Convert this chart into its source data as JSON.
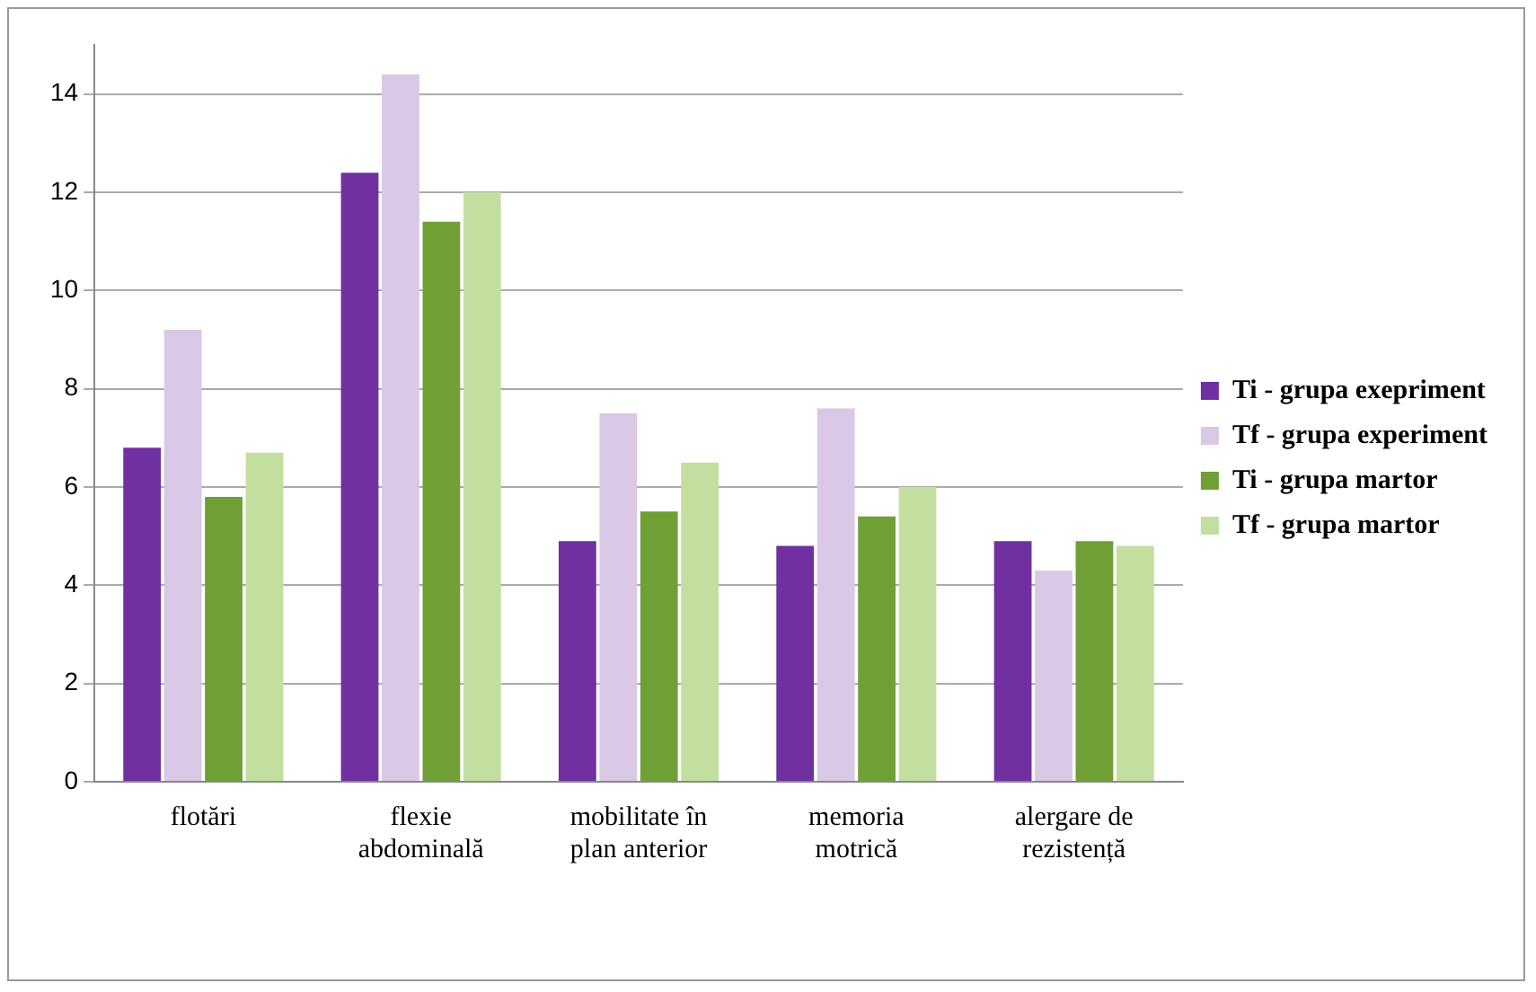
{
  "chart_data": {
    "type": "bar",
    "categories": [
      "flotări",
      "flexie abdominală",
      "mobilitate în plan anterior",
      "memoria motrică",
      "alergare de rezistență"
    ],
    "series": [
      {
        "name": "Ti - grupa exepriment",
        "color": "#7030a0",
        "values": [
          6.8,
          12.4,
          4.9,
          4.8,
          4.9
        ]
      },
      {
        "name": "Tf - grupa experiment",
        "color": "#d9c8e6",
        "values": [
          9.2,
          14.4,
          7.5,
          7.6,
          4.3
        ]
      },
      {
        "name": "Ti - grupa martor",
        "color": "#70a035",
        "values": [
          5.8,
          11.4,
          5.5,
          5.4,
          4.9
        ]
      },
      {
        "name": "Tf - grupa martor",
        "color": "#c3dfa0",
        "values": [
          6.7,
          12.0,
          6.5,
          6.0,
          4.8
        ]
      }
    ],
    "ylim": [
      0,
      15
    ],
    "yticks": [
      0,
      2,
      4,
      6,
      8,
      10,
      12,
      14
    ],
    "grid": "y",
    "legend": "right"
  }
}
